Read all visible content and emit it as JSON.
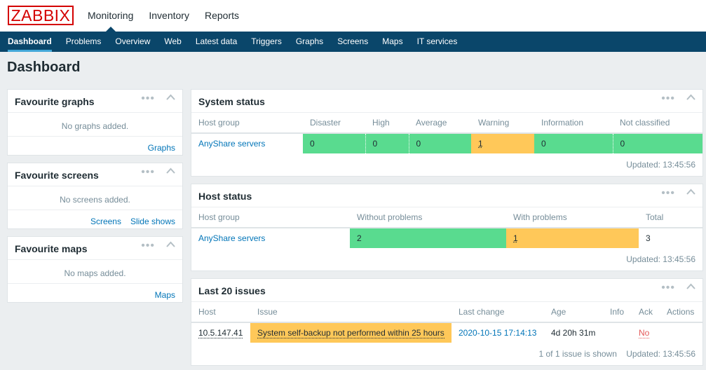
{
  "app": {
    "logo": "ZABBIX",
    "page_title": "Dashboard"
  },
  "topnav": [
    {
      "label": "Monitoring",
      "active": true
    },
    {
      "label": "Inventory",
      "active": false
    },
    {
      "label": "Reports",
      "active": false
    }
  ],
  "subnav": [
    {
      "label": "Dashboard",
      "active": true
    },
    {
      "label": "Problems"
    },
    {
      "label": "Overview"
    },
    {
      "label": "Web"
    },
    {
      "label": "Latest data"
    },
    {
      "label": "Triggers"
    },
    {
      "label": "Graphs"
    },
    {
      "label": "Screens"
    },
    {
      "label": "Maps"
    },
    {
      "label": "IT services"
    }
  ],
  "icons": {
    "more": "ellipsis-icon",
    "collapse": "chevron-up-icon"
  },
  "favourite_graphs": {
    "title": "Favourite graphs",
    "empty": "No graphs added.",
    "link": "Graphs"
  },
  "favourite_screens": {
    "title": "Favourite screens",
    "empty": "No screens added.",
    "link1": "Screens",
    "link2": "Slide shows"
  },
  "favourite_maps": {
    "title": "Favourite maps",
    "empty": "No maps added.",
    "link": "Maps"
  },
  "system_status": {
    "title": "System status",
    "headers": [
      "Host group",
      "Disaster",
      "High",
      "Average",
      "Warning",
      "Information",
      "Not classified"
    ],
    "row": {
      "group": "AnyShare servers",
      "disaster": "0",
      "high": "0",
      "average": "0",
      "warning": "1",
      "information": "0",
      "not_classified": "0"
    },
    "updated": "Updated: 13:45:56"
  },
  "host_status": {
    "title": "Host status",
    "headers": [
      "Host group",
      "Without problems",
      "With problems",
      "Total"
    ],
    "row": {
      "group": "AnyShare servers",
      "without": "2",
      "with": "1",
      "total": "3"
    },
    "updated": "Updated: 13:45:56"
  },
  "last_issues": {
    "title": "Last 20 issues",
    "headers": [
      "Host",
      "Issue",
      "Last change",
      "Age",
      "Info",
      "Ack",
      "Actions"
    ],
    "row": {
      "host": "10.5.147.41",
      "issue": "System self-backup not performed within 25 hours",
      "last_change": "2020-10-15 17:14:13",
      "age": "4d 20h 31m",
      "info": "",
      "ack": "No",
      "actions": ""
    },
    "shown": "1 of 1 issue is shown",
    "updated": "Updated: 13:45:56"
  },
  "colors": {
    "ok": "#59db8f",
    "warning": "#ffc859",
    "brand": "#d40000",
    "nav": "#0a466a",
    "link": "#0275b8"
  }
}
